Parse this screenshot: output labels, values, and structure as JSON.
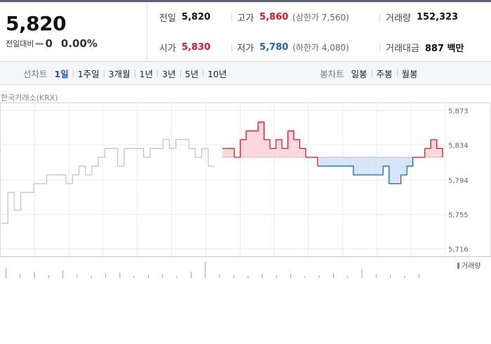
{
  "summary": {
    "price": "5,820",
    "change_label": "전일대비",
    "change_value": "0",
    "change_percent": "0.00%"
  },
  "stats": {
    "prev_close": {
      "label": "전일",
      "value": "5,820"
    },
    "high": {
      "label": "고가",
      "value": "5,860",
      "limit": "(상한가 7,560)"
    },
    "volume": {
      "label": "거래량",
      "value": "152,323"
    },
    "open": {
      "label": "시가",
      "value": "5,830"
    },
    "low": {
      "label": "저가",
      "value": "5,780",
      "limit": "(하한가 4,080)"
    },
    "amount": {
      "label": "거래대금",
      "value": "887 백만"
    }
  },
  "toolbar": {
    "line_label": "선차트",
    "line_periods": [
      "1일",
      "1주일",
      "3개월",
      "1년",
      "3년",
      "5년",
      "10년"
    ],
    "active_period": "1일",
    "candle_label": "봉차트",
    "candle_periods": [
      "일봉",
      "주봉",
      "월봉"
    ]
  },
  "colors": {
    "up": "#e4142b",
    "down": "#1764cd",
    "up_fill": "#fbd8dc",
    "down_fill": "#d6e6f8",
    "pre_market": "#c4c4c4",
    "volume_legend": "#8e7cc3",
    "grid": "#ececec"
  },
  "chart_data": {
    "type": "line",
    "source_label": "한국거래소(KRX)",
    "baseline": 5820,
    "ylim": [
      5712,
      5880
    ],
    "y_ticks": [
      "5,873",
      "5,834",
      "5,794",
      "5,755",
      "5,716"
    ],
    "y_tick_values": [
      5873,
      5834,
      5794,
      5755,
      5716
    ],
    "grid": true,
    "volume_legend": "거래량",
    "pre_market": [
      5745,
      5780,
      5760,
      5780,
      5780,
      5790,
      5790,
      5800,
      5800,
      5800,
      5790,
      5800,
      5810,
      5800,
      5810,
      5820,
      5830,
      5830,
      5810,
      5830,
      5830,
      5830,
      5820,
      5830,
      5830,
      5840,
      5830,
      5840,
      5840,
      5830,
      5820,
      5830,
      5810,
      5810
    ],
    "regular": [
      5830,
      5830,
      5820,
      5840,
      5850,
      5850,
      5860,
      5840,
      5830,
      5840,
      5830,
      5850,
      5840,
      5830,
      5820,
      5820,
      5810,
      5810,
      5810,
      5810,
      5810,
      5810,
      5800,
      5800,
      5800,
      5800,
      5800,
      5810,
      5790,
      5790,
      5800,
      5810,
      5820,
      5820,
      5830,
      5840,
      5830,
      5820
    ],
    "volume_bars": [
      14,
      6,
      9,
      4,
      11,
      5,
      3,
      7,
      8,
      3,
      4,
      6,
      3,
      9,
      24,
      5,
      4,
      3,
      6,
      4,
      5,
      3,
      4,
      7,
      3,
      13,
      5,
      4,
      3,
      6
    ]
  }
}
